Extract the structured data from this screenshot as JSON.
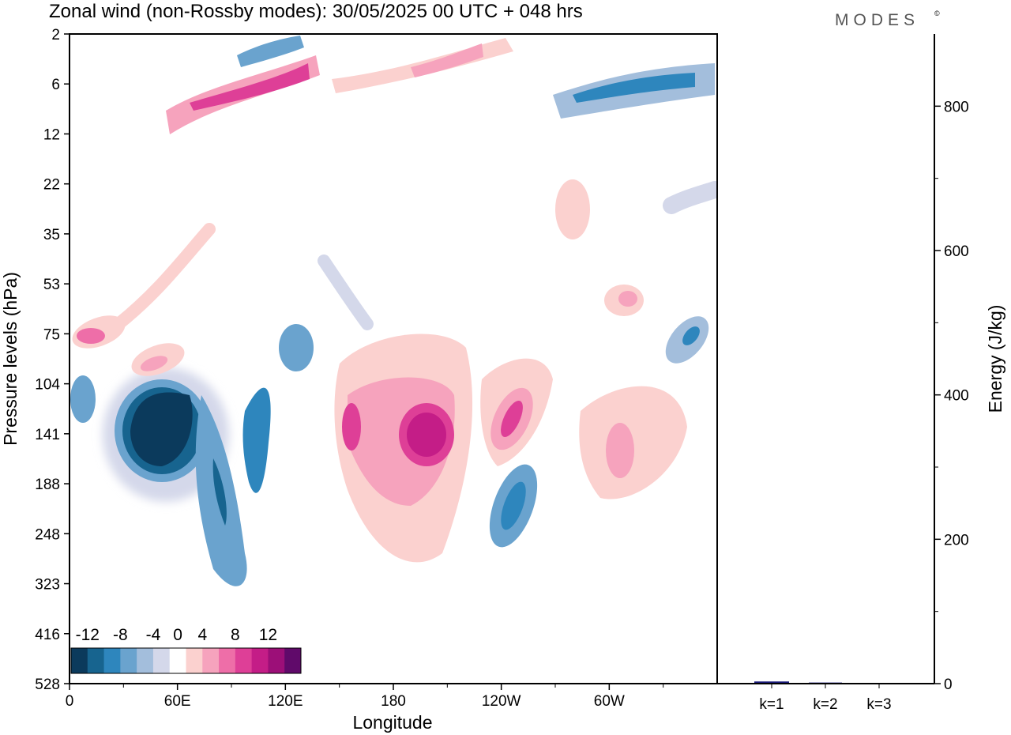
{
  "title": "Zonal wind (non-Rossby modes):  30/05/2025  00 UTC  + 048 hrs",
  "brand": "MODES",
  "brand_mark": "©",
  "chart_data": [
    {
      "type": "heatmap",
      "title": "Zonal wind (non-Rossby modes):  30/05/2025  00 UTC  + 048 hrs",
      "xlabel": "Longitude",
      "ylabel": "Pressure levels (hPa)",
      "x_ticks": [
        {
          "lon": 0,
          "label": "0"
        },
        {
          "lon": 60,
          "label": "60E"
        },
        {
          "lon": 120,
          "label": "120E"
        },
        {
          "lon": 180,
          "label": "180"
        },
        {
          "lon": 240,
          "label": "120W"
        },
        {
          "lon": 300,
          "label": "60W"
        }
      ],
      "x_range": [
        0,
        360
      ],
      "y_ticks": [
        "2",
        "6",
        "12",
        "22",
        "35",
        "53",
        "75",
        "104",
        "141",
        "188",
        "248",
        "323",
        "416",
        "528"
      ],
      "colorbar": {
        "labels": [
          "-12",
          "-8",
          "-4",
          "0",
          "4",
          "8",
          "12"
        ],
        "levels": [
          -14,
          -12,
          -10,
          -8,
          -6,
          -4,
          -2,
          2,
          4,
          6,
          8,
          10,
          12,
          14
        ],
        "colors": [
          "#0b3a5c",
          "#17648f",
          "#2e86bd",
          "#6aa3ce",
          "#a3bedc",
          "#d4d8ea",
          "#ffffff",
          "#fbd1cf",
          "#f6a3bd",
          "#ee6ea8",
          "#de3f97",
          "#c41d87",
          "#9c0f78",
          "#600a6a"
        ]
      },
      "features": [
        {
          "lon": 33,
          "level": "141",
          "value": -14
        },
        {
          "lon": 87,
          "level": "188",
          "value": -8
        },
        {
          "lon": 105,
          "level": "141",
          "value": -6
        },
        {
          "lon": 247,
          "level": "188",
          "value": -6
        },
        {
          "lon": 10,
          "level": "104",
          "value": -4
        },
        {
          "lon": 125,
          "level": "104",
          "value": -4
        },
        {
          "lon": 330,
          "level": "6",
          "value": -6
        },
        {
          "lon": 110,
          "level": "2",
          "value": -5
        },
        {
          "lon": 348,
          "level": "75",
          "value": -5
        },
        {
          "lon": 195,
          "level": "141",
          "value": 10
        },
        {
          "lon": 162,
          "level": "141",
          "value": 7
        },
        {
          "lon": 245,
          "level": "141",
          "value": 8
        },
        {
          "lon": 90,
          "level": "6",
          "value": 8
        },
        {
          "lon": 215,
          "level": "2",
          "value": 5
        },
        {
          "lon": 300,
          "level": "141",
          "value": 4
        },
        {
          "lon": 8,
          "level": "75",
          "value": 6
        },
        {
          "lon": 48,
          "level": "104",
          "value": 5
        },
        {
          "lon": 285,
          "level": "22",
          "value": 4
        },
        {
          "lon": 308,
          "level": "53",
          "value": 5
        }
      ]
    },
    {
      "type": "bar",
      "categories": [
        "k=1",
        "k=2",
        "k=3"
      ],
      "values": [
        3,
        1.5,
        0.8
      ],
      "ylabel": "Energy (J/kg)",
      "ylim": [
        0,
        900
      ],
      "y_ticks": [
        0,
        200,
        400,
        600,
        800
      ],
      "bar_color": "#1a1a7a"
    }
  ]
}
